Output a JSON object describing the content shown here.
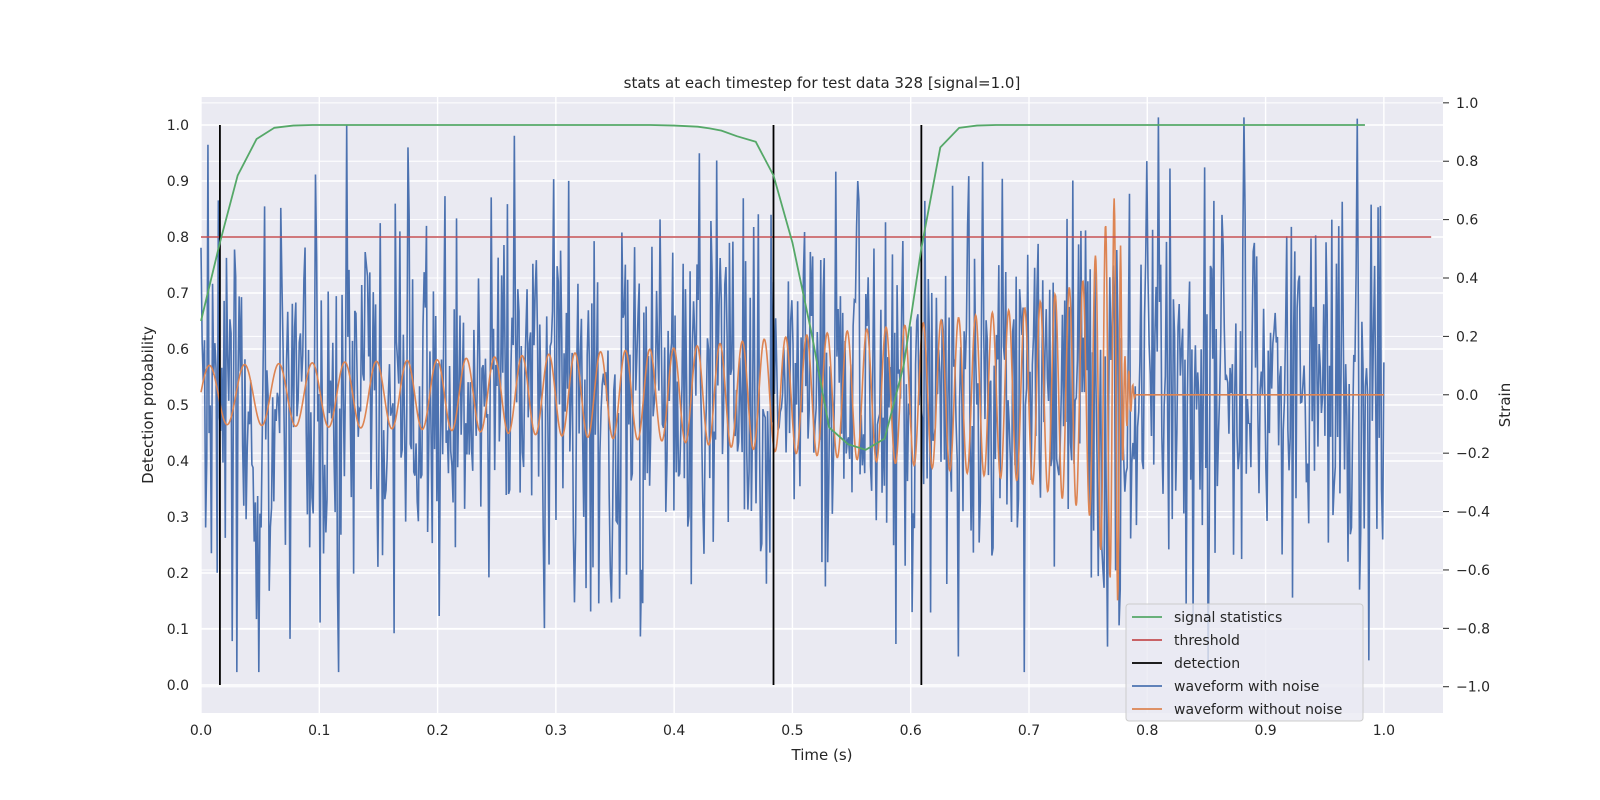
{
  "chart_data": {
    "type": "line",
    "title": "stats at each timestep for test data 328 [signal=1.0]",
    "xlabel": "Time (s)",
    "ylabel_left": "Detection probability",
    "ylabel_right": "Strain",
    "xlim": [
      0.0,
      1.05
    ],
    "ylim_left": [
      -0.05,
      1.05
    ],
    "ylim_right": [
      -1.09,
      1.02
    ],
    "xticks": [
      "0.0",
      "0.1",
      "0.2",
      "0.3",
      "0.4",
      "0.5",
      "0.6",
      "0.7",
      "0.8",
      "0.9",
      "1.0"
    ],
    "yticks_left": [
      "0.0",
      "0.1",
      "0.2",
      "0.3",
      "0.4",
      "0.5",
      "0.6",
      "0.7",
      "0.8",
      "0.9",
      "1.0"
    ],
    "yticks_right": [
      "−1.0",
      "−0.8",
      "−0.6",
      "−0.4",
      "−0.2",
      "0.0",
      "0.2",
      "0.4",
      "0.6",
      "0.8",
      "1.0"
    ],
    "grid": true,
    "legend_position": "lower-right",
    "colors": {
      "signal_statistics": "#55a868",
      "threshold": "#c44e52",
      "detection": "#000000",
      "waveform_with_noise": "#4c72b0",
      "waveform_without_noise": "#dd8452",
      "plot_background": "#eaeaf2",
      "grid": "#ffffff"
    },
    "series": [
      {
        "name": "signal statistics",
        "axis": "left",
        "x": [
          0.0,
          0.016,
          0.031,
          0.047,
          0.062,
          0.078,
          0.094,
          0.11,
          0.2,
          0.3,
          0.38,
          0.4,
          0.42,
          0.43,
          0.44,
          0.453,
          0.469,
          0.484,
          0.5,
          0.516,
          0.531,
          0.547,
          0.562,
          0.578,
          0.594,
          0.609,
          0.625,
          0.641,
          0.656,
          0.672,
          0.7,
          0.8,
          0.9,
          0.984
        ],
        "y": [
          0.65,
          0.79,
          0.91,
          0.975,
          0.995,
          0.999,
          1.0,
          1.0,
          1.0,
          1.0,
          1.0,
          0.999,
          0.997,
          0.994,
          0.99,
          0.98,
          0.97,
          0.91,
          0.79,
          0.63,
          0.46,
          0.43,
          0.42,
          0.44,
          0.57,
          0.78,
          0.96,
          0.995,
          0.999,
          1.0,
          1.0,
          1.0,
          1.0,
          1.0
        ]
      },
      {
        "name": "threshold",
        "axis": "left",
        "x": [
          0.0,
          1.04
        ],
        "y": [
          0.8,
          0.8
        ]
      },
      {
        "name": "detection",
        "axis": "left",
        "x": [
          0.016,
          0.484,
          0.609
        ],
        "y_range": [
          0.0,
          1.0
        ]
      },
      {
        "name": "waveform with noise",
        "axis": "right",
        "x_range": [
          0.0,
          1.0
        ],
        "samples": 1024,
        "amplitude": 0.95
      },
      {
        "name": "waveform without noise",
        "axis": "right",
        "x": [
          0.0,
          0.1,
          0.2,
          0.3,
          0.4,
          0.5,
          0.6,
          0.7,
          0.75,
          0.77,
          0.776,
          0.78,
          0.79,
          1.0
        ],
        "amplitude": [
          0.1,
          0.11,
          0.12,
          0.14,
          0.16,
          0.2,
          0.24,
          0.3,
          0.4,
          0.65,
          0.72,
          0.15,
          0.0,
          0.0
        ],
        "frequency_hz": [
          33,
          36,
          40,
          45,
          50,
          56,
          64,
          75,
          90,
          140,
          180,
          300,
          300,
          300
        ]
      }
    ]
  }
}
